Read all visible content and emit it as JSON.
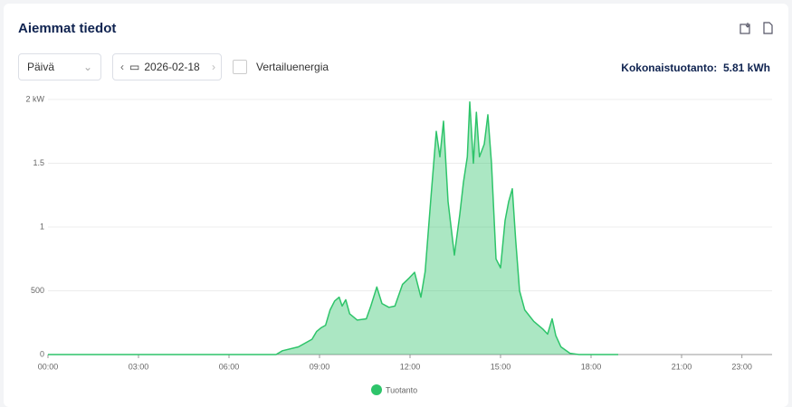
{
  "header": {
    "title": "Aiemmat tiedot"
  },
  "controls": {
    "period": "Päivä",
    "date": "2026-02-18",
    "compare": "Vertailuenergia",
    "total_label": "Kokonaistuotanto:",
    "total_value": "5.81 kWh"
  },
  "chart_data": {
    "type": "area",
    "x": [
      0,
      7.56,
      7.77,
      8.3,
      8.75,
      8.9,
      9.05,
      9.2,
      9.35,
      9.5,
      9.65,
      9.75,
      9.87,
      10.0,
      10.25,
      10.55,
      10.7,
      10.9,
      11.07,
      11.3,
      11.5,
      11.75,
      11.97,
      12.15,
      12.36,
      12.5,
      12.7,
      12.87,
      12.99,
      13.11,
      13.26,
      13.47,
      13.65,
      13.77,
      13.9,
      13.98,
      14.1,
      14.2,
      14.3,
      14.46,
      14.58,
      14.7,
      14.85,
      15.0,
      15.15,
      15.27,
      15.39,
      15.5,
      15.63,
      15.8,
      16.1,
      16.4,
      16.56,
      16.71,
      16.83,
      17.0,
      17.3,
      17.6,
      18.9
    ],
    "series": [
      {
        "name": "Tuotanto",
        "color": "#2ec46a",
        "values": [
          0,
          0,
          30,
          60,
          120,
          180,
          210,
          230,
          350,
          420,
          450,
          380,
          430,
          320,
          270,
          280,
          380,
          530,
          400,
          370,
          380,
          550,
          600,
          645,
          450,
          650,
          1250,
          1750,
          1550,
          1830,
          1200,
          780,
          1100,
          1350,
          1550,
          1980,
          1500,
          1900,
          1550,
          1650,
          1880,
          1500,
          750,
          680,
          1050,
          1200,
          1300,
          900,
          500,
          350,
          260,
          200,
          160,
          280,
          150,
          60,
          10,
          0,
          0
        ]
      }
    ],
    "xlim": [
      0,
      24
    ],
    "xticks": [
      {
        "value": 0,
        "label": "00:00"
      },
      {
        "value": 3,
        "label": "03:00"
      },
      {
        "value": 6,
        "label": "06:00"
      },
      {
        "value": 9,
        "label": "09:00"
      },
      {
        "value": 12,
        "label": "12:00"
      },
      {
        "value": 15,
        "label": "15:00"
      },
      {
        "value": 18,
        "label": "18:00"
      },
      {
        "value": 21,
        "label": "21:00"
      },
      {
        "value": 23,
        "label": "23:00"
      }
    ],
    "ylim": [
      0,
      2000
    ],
    "yticks": [
      0,
      500,
      {
        "value": 1000,
        "label": "1"
      },
      {
        "value": 1500,
        "label": "1.5"
      },
      {
        "value": 2000,
        "label": "2 kW"
      }
    ],
    "grid": true
  }
}
